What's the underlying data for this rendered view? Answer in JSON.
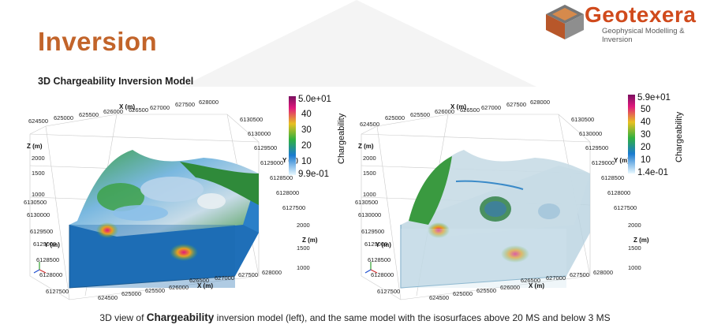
{
  "header": {
    "title": "Inversion",
    "subtitle": "3D Chargeability Inversion Model"
  },
  "logo": {
    "name": "Geotexera",
    "tagline": "Geophysical Modelling & Inversion",
    "colors": {
      "brand": "#d04a1c",
      "cube_top": "#6e6e6e",
      "cube_side": "#b8572a"
    }
  },
  "left_panel": {
    "axis_x_label": "X (m)",
    "axis_y_label": "Y (m)",
    "axis_z_label": "Z (m)",
    "x_ticks_top": [
      "625000",
      "625500",
      "626000",
      "626500",
      "627000",
      "627500",
      "628000"
    ],
    "x_ticks_bottom": [
      "624500",
      "625000",
      "625500",
      "626000",
      "626500",
      "627000",
      "627500",
      "628000"
    ],
    "y_ticks_left": [
      "6130500",
      "6130000",
      "6129500",
      "6129000",
      "6128500",
      "6128000",
      "6127500"
    ],
    "y_ticks_right": [
      "6130500",
      "6130000",
      "6129500",
      "6129000",
      "6128500",
      "6128000",
      "6127500"
    ],
    "z_ticks_left": [
      "2000",
      "1500",
      "1000"
    ],
    "z_ticks_right": [
      "2000",
      "1500",
      "1000"
    ],
    "top_left_label": "624500",
    "colorbar": {
      "title": "Chargeability",
      "labels": [
        "5.0e+01",
        "40",
        "30",
        "20",
        "10",
        "9.9e-01"
      ]
    }
  },
  "right_panel": {
    "axis_x_label": "X (m)",
    "axis_y_label": "Y (m)",
    "axis_z_label": "Z (m)",
    "x_ticks_top": [
      "625000",
      "625500",
      "626000",
      "626500",
      "627000",
      "627500",
      "628000"
    ],
    "x_ticks_bottom": [
      "624500",
      "625000",
      "625500",
      "626000",
      "626500",
      "627000",
      "627500",
      "628000"
    ],
    "y_ticks_left": [
      "6130500",
      "6130000",
      "6129500",
      "6129000",
      "6128500",
      "6128000",
      "6127500"
    ],
    "y_ticks_right": [
      "6130500",
      "6130000",
      "6129500",
      "6129000",
      "6128500",
      "6128000",
      "6127500"
    ],
    "z_ticks_left": [
      "2000",
      "1500",
      "1000"
    ],
    "z_ticks_right": [
      "2000",
      "1500",
      "1000"
    ],
    "top_left_label": "624500",
    "colorbar": {
      "title": "Chargeability",
      "labels": [
        "5.9e+01",
        "50",
        "40",
        "30",
        "20",
        "10",
        "1.4e-01"
      ]
    }
  },
  "caption": {
    "prefix": "3D view of",
    "bold": "Chargeability",
    "suffix": "inversion model (left), and the same model with the isosurfaces above 20 MS and below 3 MS"
  }
}
